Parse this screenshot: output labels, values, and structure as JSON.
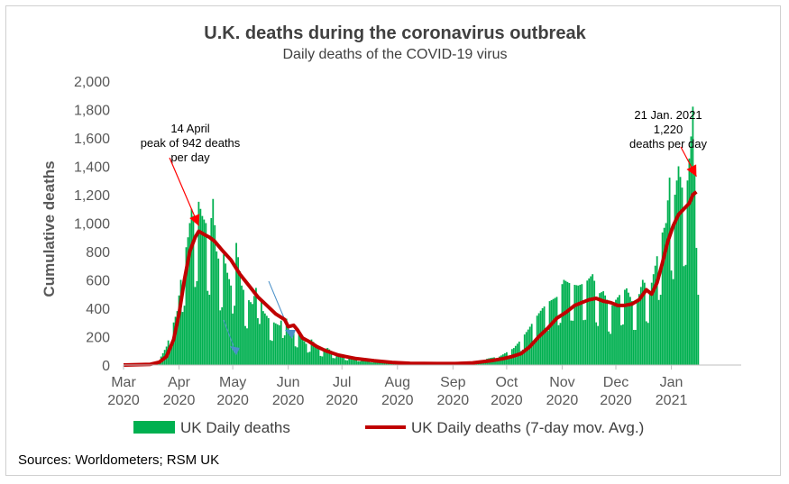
{
  "chart_data": {
    "type": "bar",
    "title": "U.K. deaths during the coronavirus outbreak",
    "subtitle": "Daily deaths of the COVID-19 virus",
    "ylabel": "Cumulative deaths",
    "xlabel": "",
    "ylim": [
      0,
      2000
    ],
    "yticks": [
      "0",
      "200",
      "400",
      "600",
      "800",
      "1,000",
      "1,200",
      "1,400",
      "1,600",
      "1,800",
      "2,000"
    ],
    "ytick_values": [
      0,
      200,
      400,
      600,
      800,
      1000,
      1200,
      1400,
      1600,
      1800,
      2000
    ],
    "grid": false,
    "legend_position": "bottom",
    "xticks": [
      {
        "month": "Mar",
        "year": "2020",
        "day": 0
      },
      {
        "month": "Apr",
        "year": "2020",
        "day": 31
      },
      {
        "month": "May",
        "year": "2020",
        "day": 61
      },
      {
        "month": "Jun",
        "year": "2020",
        "day": 92
      },
      {
        "month": "Jul",
        "year": "2020",
        "day": 122
      },
      {
        "month": "Aug",
        "year": "2020",
        "day": 153
      },
      {
        "month": "Sep",
        "year": "2020",
        "day": 184
      },
      {
        "month": "Oct",
        "year": "2020",
        "day": 214
      },
      {
        "month": "Nov",
        "year": "2020",
        "day": 245
      },
      {
        "month": "Dec",
        "year": "2020",
        "day": 275
      },
      {
        "month": "Jan",
        "year": "2021",
        "day": 306
      }
    ],
    "x_range_days": [
      0,
      345
    ],
    "series": [
      {
        "name": "UK Daily deaths",
        "kind": "bar",
        "color": "#00b050"
      },
      {
        "name": "UK Daily deaths (7-day mov. Avg.)",
        "kind": "line",
        "color": "#c00000"
      }
    ],
    "daily_anchor_points": [
      [
        0,
        0
      ],
      [
        10,
        2
      ],
      [
        15,
        8
      ],
      [
        18,
        25
      ],
      [
        21,
        60
      ],
      [
        24,
        130
      ],
      [
        27,
        260
      ],
      [
        30,
        380
      ],
      [
        32,
        600
      ],
      [
        34,
        760
      ],
      [
        36,
        900
      ],
      [
        38,
        1100
      ],
      [
        40,
        1000
      ],
      [
        42,
        1150
      ],
      [
        44,
        1050
      ],
      [
        46,
        1000
      ],
      [
        48,
        900
      ],
      [
        50,
        1170
      ],
      [
        52,
        800
      ],
      [
        54,
        700
      ],
      [
        56,
        780
      ],
      [
        58,
        650
      ],
      [
        60,
        560
      ],
      [
        63,
        860
      ],
      [
        66,
        560
      ],
      [
        69,
        470
      ],
      [
        72,
        430
      ],
      [
        75,
        600
      ],
      [
        78,
        380
      ],
      [
        81,
        330
      ],
      [
        84,
        300
      ],
      [
        87,
        280
      ],
      [
        90,
        380
      ],
      [
        93,
        220
      ],
      [
        96,
        240
      ],
      [
        99,
        200
      ],
      [
        102,
        150
      ],
      [
        105,
        180
      ],
      [
        108,
        130
      ],
      [
        111,
        110
      ],
      [
        114,
        120
      ],
      [
        117,
        90
      ],
      [
        120,
        80
      ],
      [
        125,
        60
      ],
      [
        130,
        50
      ],
      [
        135,
        40
      ],
      [
        140,
        30
      ],
      [
        145,
        25
      ],
      [
        150,
        20
      ],
      [
        160,
        15
      ],
      [
        170,
        12
      ],
      [
        180,
        10
      ],
      [
        185,
        12
      ],
      [
        190,
        15
      ],
      [
        195,
        20
      ],
      [
        200,
        35
      ],
      [
        205,
        50
      ],
      [
        210,
        60
      ],
      [
        214,
        90
      ],
      [
        218,
        120
      ],
      [
        222,
        180
      ],
      [
        226,
        250
      ],
      [
        230,
        330
      ],
      [
        234,
        400
      ],
      [
        238,
        450
      ],
      [
        242,
        480
      ],
      [
        246,
        600
      ],
      [
        250,
        570
      ],
      [
        254,
        560
      ],
      [
        258,
        580
      ],
      [
        262,
        640
      ],
      [
        265,
        500
      ],
      [
        268,
        520
      ],
      [
        272,
        400
      ],
      [
        275,
        460
      ],
      [
        278,
        510
      ],
      [
        281,
        540
      ],
      [
        284,
        450
      ],
      [
        287,
        450
      ],
      [
        290,
        600
      ],
      [
        294,
        520
      ],
      [
        297,
        700
      ],
      [
        300,
        900
      ],
      [
        303,
        1000
      ],
      [
        305,
        1320
      ],
      [
        307,
        1100
      ],
      [
        310,
        1400
      ],
      [
        312,
        1250
      ],
      [
        315,
        1300
      ],
      [
        317,
        1610
      ],
      [
        318,
        1820
      ],
      [
        319,
        1350
      ],
      [
        320,
        1500
      ],
      [
        321,
        900
      ]
    ],
    "ma_anchor_points": [
      [
        0,
        0
      ],
      [
        15,
        5
      ],
      [
        20,
        20
      ],
      [
        24,
        60
      ],
      [
        28,
        180
      ],
      [
        31,
        360
      ],
      [
        34,
        600
      ],
      [
        37,
        800
      ],
      [
        40,
        900
      ],
      [
        42,
        942
      ],
      [
        45,
        920
      ],
      [
        48,
        900
      ],
      [
        51,
        870
      ],
      [
        55,
        810
      ],
      [
        60,
        740
      ],
      [
        65,
        640
      ],
      [
        70,
        560
      ],
      [
        75,
        480
      ],
      [
        80,
        420
      ],
      [
        85,
        360
      ],
      [
        90,
        320
      ],
      [
        92,
        270
      ],
      [
        95,
        280
      ],
      [
        97,
        250
      ],
      [
        100,
        190
      ],
      [
        103,
        170
      ],
      [
        108,
        130
      ],
      [
        113,
        100
      ],
      [
        120,
        70
      ],
      [
        130,
        45
      ],
      [
        140,
        30
      ],
      [
        150,
        18
      ],
      [
        160,
        12
      ],
      [
        175,
        10
      ],
      [
        185,
        10
      ],
      [
        195,
        15
      ],
      [
        205,
        30
      ],
      [
        212,
        45
      ],
      [
        217,
        60
      ],
      [
        222,
        80
      ],
      [
        227,
        130
      ],
      [
        232,
        200
      ],
      [
        237,
        260
      ],
      [
        242,
        330
      ],
      [
        247,
        370
      ],
      [
        252,
        420
      ],
      [
        256,
        440
      ],
      [
        260,
        460
      ],
      [
        264,
        470
      ],
      [
        268,
        450
      ],
      [
        272,
        440
      ],
      [
        276,
        420
      ],
      [
        280,
        420
      ],
      [
        284,
        430
      ],
      [
        288,
        460
      ],
      [
        292,
        530
      ],
      [
        295,
        500
      ],
      [
        298,
        580
      ],
      [
        301,
        720
      ],
      [
        304,
        870
      ],
      [
        307,
        980
      ],
      [
        310,
        1060
      ],
      [
        313,
        1100
      ],
      [
        316,
        1140
      ],
      [
        318,
        1200
      ],
      [
        320,
        1220
      ]
    ],
    "annotations": [
      {
        "lines": [
          "14 April",
          "peak of 942 deaths",
          "per day"
        ],
        "target": [
          42,
          942
        ]
      },
      {
        "lines": [
          "21 Jan. 2021",
          "1,220",
          "deaths per day"
        ],
        "target": [
          320,
          1290
        ]
      }
    ]
  },
  "source_note": "Sources: Worldometers; RSM UK"
}
